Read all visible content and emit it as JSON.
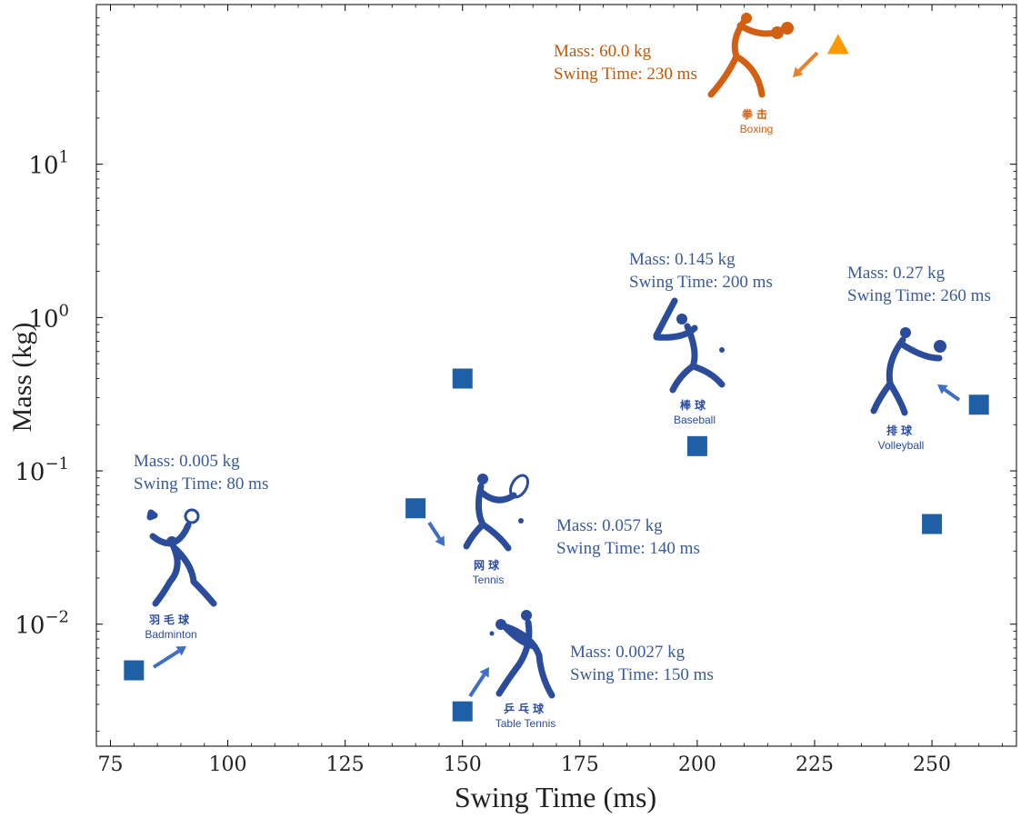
{
  "chart_data": {
    "type": "scatter",
    "xlabel": "Swing Time (ms)",
    "ylabel": "Mass (kg)",
    "xlim": [
      72,
      268
    ],
    "ylim": [
      0.0016,
      110
    ],
    "yscale": "log",
    "grid": false,
    "x_ticks": [
      75,
      100,
      125,
      150,
      175,
      200,
      225,
      250
    ],
    "y_ticks": [
      {
        "value": 0.01,
        "base": "10",
        "exp": "−2"
      },
      {
        "value": 0.1,
        "base": "10",
        "exp": "−1"
      },
      {
        "value": 1,
        "base": "10",
        "exp": "0"
      },
      {
        "value": 10,
        "base": "10",
        "exp": "1"
      }
    ],
    "colors": {
      "blue_marker": "#1f5fa6",
      "orange_marker": "#ff9900",
      "blue_text": "#3a5a98",
      "orange_text": "#bf5a0a",
      "blue_arrow": "#3f6fc4",
      "orange_arrow": "#e8802a",
      "blue_icon": "#2b4c9b",
      "orange_icon": "#d35f12"
    },
    "points": [
      {
        "x": 80,
        "y": 0.005,
        "marker": "square",
        "color": "#1f5fa6"
      },
      {
        "x": 140,
        "y": 0.057,
        "marker": "square",
        "color": "#1f5fa6"
      },
      {
        "x": 150,
        "y": 0.0027,
        "marker": "square",
        "color": "#1f5fa6"
      },
      {
        "x": 150,
        "y": 0.4,
        "marker": "square",
        "color": "#1f5fa6"
      },
      {
        "x": 200,
        "y": 0.145,
        "marker": "square",
        "color": "#1f5fa6"
      },
      {
        "x": 250,
        "y": 0.045,
        "marker": "square",
        "color": "#1f5fa6"
      },
      {
        "x": 260,
        "y": 0.27,
        "marker": "square",
        "color": "#1f5fa6"
      },
      {
        "x": 230,
        "y": 60.0,
        "marker": "triangle",
        "color": "#ff9900"
      }
    ],
    "annotations": [
      {
        "id": "badminton",
        "line1": "Mass: 0.005 kg",
        "line2": "Swing Time: 80 ms",
        "cn": "羽毛球",
        "en": "Badminton",
        "color": "#3a5a98"
      },
      {
        "id": "tennis",
        "line1": "Mass: 0.057 kg",
        "line2": "Swing Time: 140 ms",
        "cn": "网球",
        "en": "Tennis",
        "color": "#3a5a98"
      },
      {
        "id": "table-tennis",
        "line1": "Mass: 0.0027 kg",
        "line2": "Swing Time: 150 ms",
        "cn": "乒乓球",
        "en": "Table Tennis",
        "color": "#3a5a98"
      },
      {
        "id": "baseball",
        "line1": "Mass: 0.145 kg",
        "line2": "Swing Time: 200 ms",
        "cn": "棒球",
        "en": "Baseball",
        "color": "#3a5a98"
      },
      {
        "id": "volleyball",
        "line1": "Mass: 0.27 kg",
        "line2": "Swing Time: 260 ms",
        "cn": "排球",
        "en": "Volleyball",
        "color": "#3a5a98"
      },
      {
        "id": "boxing",
        "line1": "Mass: 60.0 kg",
        "line2": "Swing Time: 230 ms",
        "cn": "拳击",
        "en": "Boxing",
        "color": "#bf5a0a"
      }
    ]
  }
}
